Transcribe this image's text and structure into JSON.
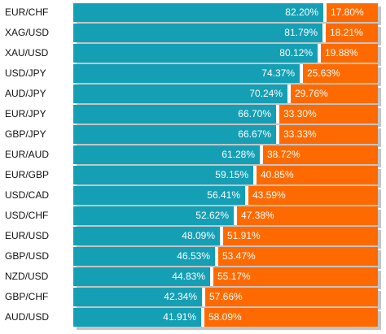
{
  "colors": {
    "long": "#159fb4",
    "short": "#ff6a00"
  },
  "chart_data": {
    "type": "bar",
    "stacked": true,
    "orientation": "horizontal",
    "categories": [
      "EUR/CHF",
      "XAG/USD",
      "XAU/USD",
      "USD/JPY",
      "AUD/JPY",
      "EUR/JPY",
      "GBP/JPY",
      "EUR/AUD",
      "EUR/GBP",
      "USD/CAD",
      "USD/CHF",
      "EUR/USD",
      "GBP/USD",
      "NZD/USD",
      "GBP/CHF",
      "AUD/USD"
    ],
    "series": [
      {
        "values": [
          82.2,
          81.79,
          80.12,
          74.37,
          70.24,
          66.7,
          66.67,
          61.28,
          59.15,
          56.41,
          52.62,
          48.09,
          46.53,
          44.83,
          42.34,
          41.91
        ],
        "labels": [
          "82.20%",
          "81.79%",
          "80.12%",
          "74.37%",
          "70.24%",
          "66.70%",
          "66.67%",
          "61.28%",
          "59.15%",
          "56.41%",
          "52.62%",
          "48.09%",
          "46.53%",
          "44.83%",
          "42.34%",
          "41.91%"
        ]
      },
      {
        "values": [
          17.8,
          18.21,
          19.88,
          25.63,
          29.76,
          33.3,
          33.33,
          38.72,
          40.85,
          43.59,
          47.38,
          51.91,
          53.47,
          55.17,
          57.66,
          58.09
        ],
        "labels": [
          "17.80%",
          "18.21%",
          "19.88%",
          "25.63%",
          "29.76%",
          "33.30%",
          "33.33%",
          "38.72%",
          "40.85%",
          "43.59%",
          "47.38%",
          "51.91%",
          "53.47%",
          "55.17%",
          "57.66%",
          "58.09%"
        ]
      }
    ],
    "xlim": [
      0,
      100
    ],
    "legend": "none",
    "grid": false
  }
}
